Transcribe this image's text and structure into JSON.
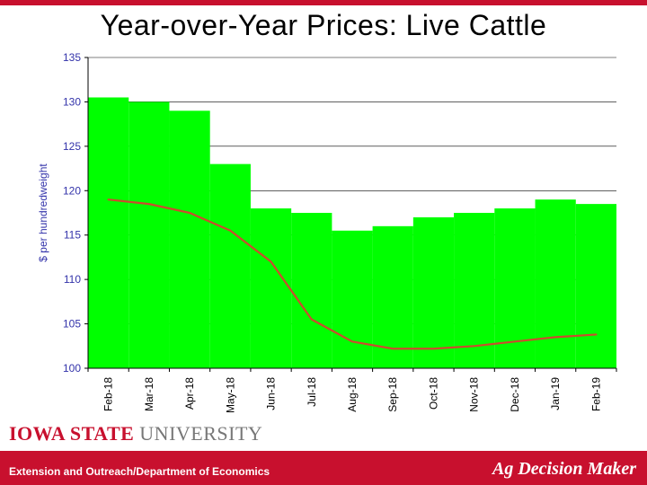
{
  "accent_color": "#c8102e",
  "title": "Year-over-Year Prices: Live Cattle",
  "title_color": "#000000",
  "wordmark_heavy": "IOWA STATE",
  "wordmark_light": " UNIVERSITY",
  "wordmark_heavy_color": "#c8102e",
  "wordmark_light_color": "#777777",
  "footer_bg": "#c8102e",
  "footer_left": "Extension and Outreach/Department of Economics",
  "footer_right": "Ag Decision Maker",
  "chart": {
    "type": "bar+line",
    "background_color": "#ffffff",
    "plot_border_color": "#000000",
    "grid_color": "#000000",
    "grid_width": 0.6,
    "ylabel": "$ per hundredweight",
    "ylabel_fontsize": 12,
    "ylabel_color": "#3333aa",
    "yaxis_tick_color": "#3333aa",
    "yaxis_tick_fontsize": 12,
    "xaxis_tick_color": "#000000",
    "xaxis_tick_fontsize": 12,
    "ylim": [
      100,
      135
    ],
    "yticks": [
      100,
      105,
      110,
      115,
      120,
      125,
      130,
      135
    ],
    "categories": [
      "Feb-18",
      "Mar-18",
      "Apr-18",
      "May-18",
      "Jun-18",
      "Jul-18",
      "Aug-18",
      "Sep-18",
      "Oct-18",
      "Nov-18",
      "Dec-18",
      "Jan-19",
      "Feb-19"
    ],
    "bars": {
      "color": "#00ff00",
      "values": [
        130.5,
        130.0,
        129.0,
        123.0,
        118.0,
        117.5,
        115.5,
        116.0,
        117.0,
        117.5,
        118.0,
        119.0,
        118.5
      ],
      "width_ratio": 1.0
    },
    "line": {
      "color": "#cc4b2e",
      "width": 2.2,
      "values": [
        119.0,
        118.5,
        117.5,
        115.5,
        112.0,
        105.5,
        103.0,
        102.2,
        102.2,
        102.5,
        103.0,
        103.5,
        103.8
      ]
    }
  }
}
